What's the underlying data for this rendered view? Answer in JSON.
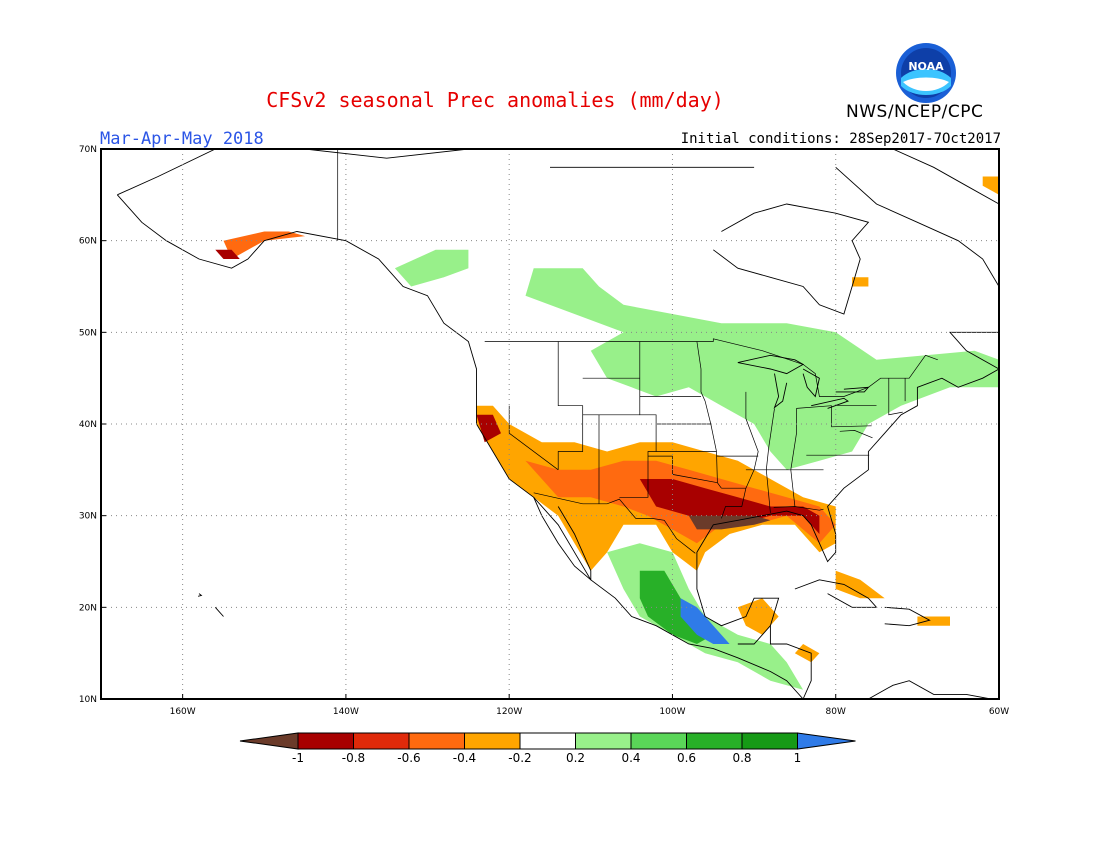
{
  "header": {
    "title": "CFSv2 seasonal Prec anomalies (mm/day)",
    "agency": "NWS/NCEP/CPC",
    "season": "Mar-Apr-May 2018",
    "initial_conditions": "Initial conditions: 28Sep2017-7Oct2017",
    "logo_text": "NOAA"
  },
  "map": {
    "lat_labels": [
      "70N",
      "60N",
      "50N",
      "40N",
      "30N",
      "20N",
      "10N"
    ],
    "lon_labels": [
      "160W",
      "140W",
      "120W",
      "100W",
      "80W",
      "60W"
    ],
    "lat_range": [
      10,
      70
    ],
    "lon_range": [
      -170,
      -60
    ]
  },
  "colorbar": {
    "labels": [
      "-1",
      "-0.8",
      "-0.6",
      "-0.4",
      "-0.2",
      "0.2",
      "0.4",
      "0.6",
      "0.8",
      "1"
    ],
    "colors": [
      "#6b3b2a",
      "#a80000",
      "#e02a0a",
      "#ff6a10",
      "#ffa500",
      "#ffffff",
      "#98f08a",
      "#5ad658",
      "#28b028",
      "#169a16",
      "#2f7be8"
    ]
  },
  "colors": {
    "title": "#e60000",
    "season": "#2b55e6",
    "gridlines": "#888888"
  }
}
